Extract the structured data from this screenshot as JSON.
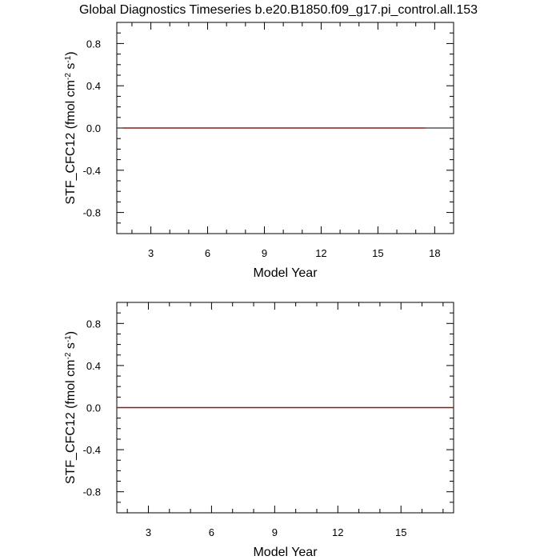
{
  "figure": {
    "title": "Global Diagnostics Timeseries b.e20.B1850.f09_g17.pi_control.all.153"
  },
  "chart_data": [
    {
      "type": "line",
      "xlabel": "Model Year",
      "ylabel_main": "STF_CFC12 (fmol cm",
      "ylabel_exp1": "-2",
      "ylabel_mid": " s",
      "ylabel_exp2": "-1",
      "ylabel_end": ")",
      "xlim": [
        1.2,
        19.0
      ],
      "ylim": [
        -1.0,
        1.0
      ],
      "xticks": [
        3,
        6,
        9,
        12,
        15,
        18
      ],
      "xtick_labels": [
        "3",
        "6",
        "9",
        "12",
        "15",
        "18"
      ],
      "yticks": [
        -0.8,
        -0.4,
        0.0,
        0.4,
        0.8
      ],
      "ytick_labels": [
        "-0.8",
        "-0.4",
        "0.0",
        "0.4",
        "0.8"
      ],
      "reference_line": 0.0,
      "series": [
        {
          "color": "#8b1a1a",
          "x": [
            1.5,
            17.5
          ],
          "y": [
            0.0,
            0.0
          ]
        }
      ]
    },
    {
      "type": "line",
      "xlabel": "Model Year",
      "ylabel_main": "STF_CFC12 (fmol cm",
      "ylabel_exp1": "-2",
      "ylabel_mid": " s",
      "ylabel_exp2": "-1",
      "ylabel_end": ")",
      "xlim": [
        1.5,
        17.5
      ],
      "ylim": [
        -1.0,
        1.0
      ],
      "xticks": [
        3,
        6,
        9,
        12,
        15
      ],
      "xtick_labels": [
        "3",
        "6",
        "9",
        "12",
        "15"
      ],
      "yticks": [
        -0.8,
        -0.4,
        0.0,
        0.4,
        0.8
      ],
      "ytick_labels": [
        "-0.8",
        "-0.4",
        "0.0",
        "0.4",
        "0.8"
      ],
      "reference_line": 0.0,
      "series": [
        {
          "color": "#8b1a1a",
          "x": [
            1.5,
            17.5
          ],
          "y": [
            0.0,
            0.0
          ]
        }
      ]
    }
  ]
}
